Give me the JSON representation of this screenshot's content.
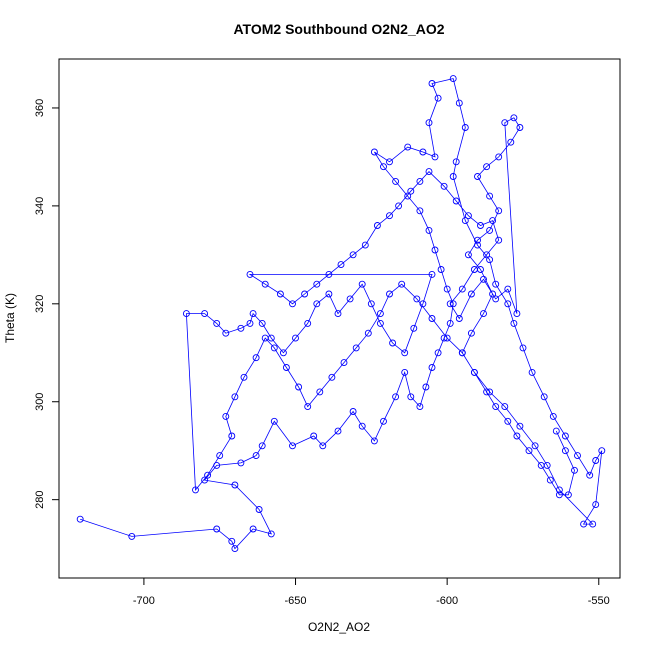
{
  "chart_data": {
    "type": "scatter",
    "title": "ATOM2 Southbound O2N2_AO2",
    "xlabel": "O2N2_AO2",
    "ylabel": "Theta (K)",
    "xlim": [
      -728,
      -543
    ],
    "ylim": [
      264,
      370
    ],
    "xticks": [
      -700,
      -650,
      -600,
      -550
    ],
    "yticks": [
      280,
      300,
      320,
      340,
      360
    ],
    "series": [
      {
        "connected": true,
        "points": [
          [
            -721,
            276
          ],
          [
            -704,
            272.5
          ],
          [
            -676,
            274
          ],
          [
            -671,
            271.5
          ],
          [
            -670,
            270
          ],
          [
            -664,
            274
          ],
          [
            -658,
            273
          ],
          [
            -662,
            278
          ],
          [
            -670,
            283
          ],
          [
            -680,
            284
          ],
          [
            -676,
            287
          ],
          [
            -668,
            287.5
          ],
          [
            -663,
            289
          ],
          [
            -661,
            291
          ],
          [
            -657,
            296
          ],
          [
            -651,
            291
          ],
          [
            -644,
            293
          ],
          [
            -641,
            291
          ],
          [
            -636,
            294
          ],
          [
            -631,
            298
          ],
          [
            -628,
            295
          ],
          [
            -624,
            292
          ],
          [
            -621,
            296
          ],
          [
            -617,
            301
          ],
          [
            -614,
            306
          ],
          [
            -612,
            301
          ],
          [
            -609,
            299
          ],
          [
            -607,
            303
          ],
          [
            -605,
            307
          ],
          [
            -603,
            310
          ],
          [
            -601,
            313
          ],
          [
            -599,
            316
          ],
          [
            -598,
            320
          ],
          [
            -600,
            323
          ],
          [
            -602,
            327
          ],
          [
            -604,
            331
          ],
          [
            -606,
            335
          ],
          [
            -609,
            339
          ],
          [
            -613,
            342
          ],
          [
            -617,
            345
          ],
          [
            -621,
            348
          ],
          [
            -624,
            351
          ],
          [
            -619,
            349
          ],
          [
            -613,
            352
          ],
          [
            -608,
            351
          ],
          [
            -604,
            350
          ],
          [
            -606,
            357
          ],
          [
            -603,
            362
          ],
          [
            -605,
            365
          ],
          [
            -598,
            366
          ],
          [
            -596,
            361
          ],
          [
            -594,
            356
          ],
          [
            -597,
            349
          ],
          [
            -598,
            346
          ],
          [
            -594,
            337
          ],
          [
            -590,
            332
          ],
          [
            -586,
            329
          ],
          [
            -584,
            324
          ],
          [
            -580,
            320
          ],
          [
            -578,
            316
          ],
          [
            -575,
            311
          ],
          [
            -572,
            306
          ],
          [
            -568,
            301
          ],
          [
            -565,
            297
          ],
          [
            -561,
            293
          ],
          [
            -557,
            289
          ],
          [
            -553,
            285
          ],
          [
            -551,
            288
          ],
          [
            -549,
            290
          ],
          [
            -551,
            279
          ],
          [
            -555,
            275
          ],
          [
            -552,
            275
          ],
          [
            -563,
            282
          ],
          [
            -567,
            287
          ],
          [
            -571,
            291
          ],
          [
            -576,
            295
          ],
          [
            -581,
            299
          ],
          [
            -586,
            302
          ],
          [
            -591,
            306
          ],
          [
            -595,
            310
          ],
          [
            -600,
            313
          ],
          [
            -605,
            317
          ],
          [
            -610,
            321
          ],
          [
            -615,
            324
          ],
          [
            -619,
            322
          ],
          [
            -622,
            318
          ],
          [
            -626,
            314
          ],
          [
            -630,
            311
          ],
          [
            -634,
            308
          ],
          [
            -638,
            305
          ],
          [
            -642,
            302
          ],
          [
            -646,
            299
          ],
          [
            -649,
            303
          ],
          [
            -653,
            307
          ],
          [
            -657,
            311
          ],
          [
            -660,
            313
          ],
          [
            -663,
            309
          ],
          [
            -667,
            305
          ],
          [
            -670,
            301
          ],
          [
            -673,
            297
          ],
          [
            -671,
            293
          ],
          [
            -675,
            289
          ],
          [
            -679,
            285
          ],
          [
            -683,
            282
          ],
          [
            -686,
            318
          ],
          [
            -680,
            318
          ],
          [
            -676,
            316
          ],
          [
            -673,
            314
          ],
          [
            -668,
            315
          ],
          [
            -665,
            316
          ],
          [
            -664,
            318
          ],
          [
            -661,
            316
          ],
          [
            -658,
            313
          ],
          [
            -654,
            310
          ],
          [
            -650,
            313
          ],
          [
            -646,
            316
          ],
          [
            -643,
            320
          ],
          [
            -639,
            322
          ],
          [
            -636,
            318
          ],
          [
            -632,
            321
          ],
          [
            -628,
            324
          ],
          [
            -625,
            320
          ],
          [
            -622,
            316
          ],
          [
            -618,
            312
          ],
          [
            -614,
            310
          ],
          [
            -611,
            315
          ],
          [
            -608,
            320
          ],
          [
            -605,
            326
          ],
          [
            -665,
            326
          ],
          [
            -660,
            324
          ],
          [
            -655,
            322
          ],
          [
            -651,
            320
          ],
          [
            -647,
            322
          ],
          [
            -643,
            324
          ],
          [
            -639,
            326
          ],
          [
            -635,
            328
          ],
          [
            -631,
            330
          ],
          [
            -627,
            332
          ],
          [
            -623,
            336
          ],
          [
            -619,
            338
          ],
          [
            -616,
            340
          ],
          [
            -612,
            343
          ],
          [
            -609,
            345
          ],
          [
            -606,
            347
          ],
          [
            -601,
            344
          ],
          [
            -597,
            341
          ],
          [
            -593,
            338
          ],
          [
            -589,
            336
          ],
          [
            -585,
            337
          ],
          [
            -583,
            333
          ],
          [
            -587,
            330
          ],
          [
            -591,
            327
          ],
          [
            -595,
            323
          ],
          [
            -599,
            320
          ],
          [
            -596,
            317
          ],
          [
            -592,
            322
          ],
          [
            -588,
            325
          ],
          [
            -584,
            321
          ],
          [
            -580,
            323
          ],
          [
            -577,
            318
          ],
          [
            -581,
            357
          ],
          [
            -578,
            358
          ],
          [
            -576,
            356
          ],
          [
            -579,
            353
          ],
          [
            -583,
            350
          ],
          [
            -587,
            348
          ],
          [
            -590,
            346
          ],
          [
            -586,
            342
          ],
          [
            -583,
            339
          ],
          [
            -586,
            335
          ],
          [
            -590,
            333
          ],
          [
            -593,
            330
          ],
          [
            -589,
            327
          ],
          [
            -585,
            322
          ],
          [
            -588,
            318
          ],
          [
            -592,
            314
          ],
          [
            -595,
            310
          ],
          [
            -591,
            306
          ],
          [
            -587,
            302
          ],
          [
            -584,
            299
          ],
          [
            -580,
            296
          ],
          [
            -577,
            293
          ],
          [
            -573,
            290
          ],
          [
            -569,
            287
          ],
          [
            -566,
            284
          ],
          [
            -563,
            281
          ],
          [
            -560,
            281
          ],
          [
            -558,
            286
          ],
          [
            -561,
            290
          ],
          [
            -564,
            294
          ]
        ]
      }
    ]
  }
}
